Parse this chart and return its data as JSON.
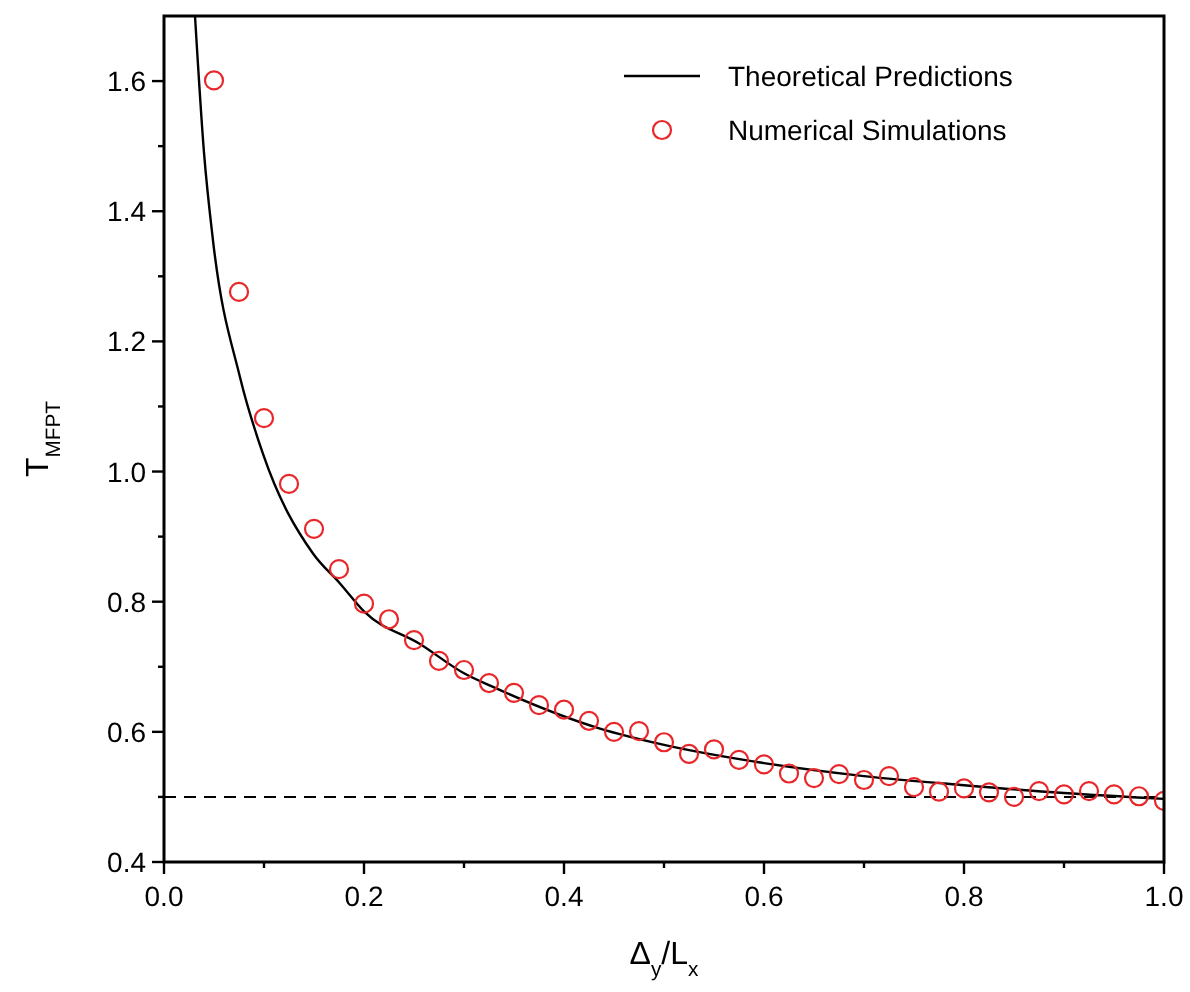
{
  "chart_data": {
    "type": "scatter",
    "xlabel": "Δ$_{y}$/L$_{x}$",
    "ylabel": "T$_{MFPT}$",
    "xlim": [
      0,
      1
    ],
    "ylim": [
      0.4,
      1.7
    ],
    "xticks": [
      {
        "value": 0,
        "label": "0.0"
      },
      {
        "value": 0.1,
        "label": null
      },
      {
        "value": 0.2,
        "label": "0.2"
      },
      {
        "value": 0.3,
        "label": null
      },
      {
        "value": 0.4,
        "label": "0.4"
      },
      {
        "value": 0.5,
        "label": null
      },
      {
        "value": 0.6,
        "label": "0.6"
      },
      {
        "value": 0.7,
        "label": null
      },
      {
        "value": 0.8,
        "label": "0.8"
      },
      {
        "value": 0.9,
        "label": null
      },
      {
        "value": 1,
        "label": "1.0"
      }
    ],
    "yticks": [
      {
        "value": 0.4,
        "label": "0.4"
      },
      {
        "value": 0.5,
        "label": null
      },
      {
        "value": 0.6,
        "label": "0.6"
      },
      {
        "value": 0.7,
        "label": null
      },
      {
        "value": 0.8,
        "label": "0.8"
      },
      {
        "value": 0.9,
        "label": null
      },
      {
        "value": 1,
        "label": "1.0"
      },
      {
        "value": 1.1,
        "label": null
      },
      {
        "value": 1.2,
        "label": "1.2"
      },
      {
        "value": 1.3,
        "label": null
      },
      {
        "value": 1.4,
        "label": "1.4"
      },
      {
        "value": 1.5,
        "label": null
      },
      {
        "value": 1.6,
        "label": "1.6"
      }
    ],
    "grid": false,
    "legend": "top right",
    "ref_lines": [
      {
        "axis": "y",
        "value": 0.5,
        "line_style": "dashed",
        "color": "#000000"
      }
    ],
    "series": [
      {
        "name": "Theoretical Predictions",
        "type": "line",
        "color": "#000000",
        "line_style": "solid",
        "x": [
          0.031,
          0.04,
          0.049,
          0.076,
          0.099,
          0.149,
          0.176,
          0.2,
          0.256,
          0.3,
          0.329,
          0.436,
          0.5,
          0.6,
          0.7,
          0.8,
          0.9,
          1.0
        ],
        "values": [
          1.7,
          1.49,
          1.355,
          1.145,
          1.027,
          0.874,
          0.828,
          0.785,
          0.735,
          0.69,
          0.669,
          0.605,
          0.58,
          0.552,
          0.532,
          0.518,
          0.506,
          0.497
        ]
      },
      {
        "name": "Numerical Simulations",
        "color": "#e8272a",
        "marker": "circle",
        "x": [
          0.05,
          0.075,
          0.1,
          0.125,
          0.15,
          0.175,
          0.2,
          0.225,
          0.25,
          0.275,
          0.3,
          0.325,
          0.35,
          0.375,
          0.4,
          0.425,
          0.45,
          0.475,
          0.5,
          0.525,
          0.55,
          0.575,
          0.6,
          0.625,
          0.65,
          0.675,
          0.7,
          0.725,
          0.75,
          0.775,
          0.8,
          0.825,
          0.85,
          0.875,
          0.9,
          0.925,
          0.95,
          0.975,
          1.0
        ],
        "values": [
          1.601,
          1.276,
          1.082,
          0.981,
          0.912,
          0.85,
          0.797,
          0.773,
          0.741,
          0.709,
          0.695,
          0.675,
          0.66,
          0.641,
          0.634,
          0.617,
          0.6,
          0.601,
          0.584,
          0.566,
          0.573,
          0.557,
          0.55,
          0.536,
          0.529,
          0.535,
          0.526,
          0.532,
          0.515,
          0.508,
          0.513,
          0.507,
          0.5,
          0.509,
          0.504,
          0.509,
          0.504,
          0.501,
          0.494
        ]
      }
    ]
  }
}
